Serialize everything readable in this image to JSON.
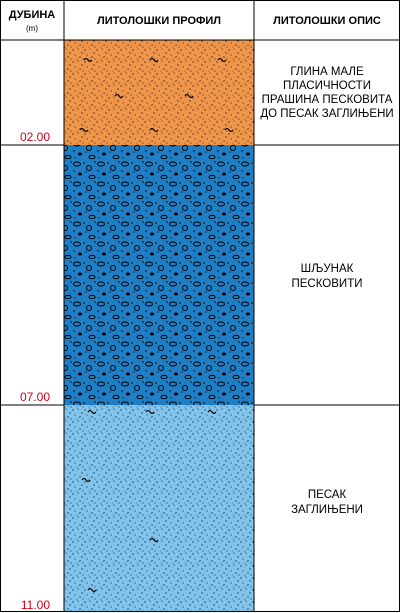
{
  "header": {
    "depth": "ДУБИНА",
    "unit": "(m)",
    "profile": "ЛИТОЛОШКИ ПРОФИЛ",
    "description": "ЛИТОЛОШКИ ОПИС"
  },
  "layers": [
    {
      "depth": "02.00",
      "description": [
        "ГЛИНА МАЛЕ",
        "ПЛАСИЧНОСТИ",
        "ПРАШИНА ПЕСКОВИТА",
        "ДО ПЕСАК ЗАГЛИЊЕНИ"
      ]
    },
    {
      "depth": "07.00",
      "description": [
        "ШЉУНАК",
        "ПЕСКОВИТИ"
      ]
    },
    {
      "depth": "11.00",
      "description": [
        "ПЕСАК",
        "ЗАГЛИЊЕНИ"
      ]
    }
  ]
}
